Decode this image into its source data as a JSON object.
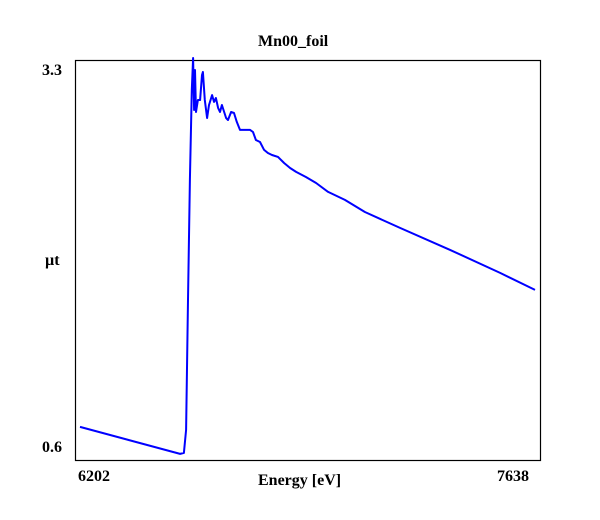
{
  "chart_data": {
    "type": "line",
    "title": "Mn00_foil",
    "xlabel": "Energy [eV]",
    "ylabel": "µt",
    "xlim": [
      6202,
      7638
    ],
    "ylim": [
      0.6,
      3.3
    ],
    "x_tick_labels": [
      "6202",
      "7638"
    ],
    "y_tick_labels": [
      "3.3",
      "0.6"
    ],
    "grid": false,
    "series": [
      {
        "name": "Mn00_foil",
        "color": "#0000ff",
        "x": [
          6202,
          6518,
          6530,
          6537,
          6543,
          6549,
          6555,
          6559,
          6562,
          6565,
          6568,
          6574,
          6581,
          6587,
          6590,
          6596,
          6603,
          6609,
          6619,
          6625,
          6631,
          6638,
          6644,
          6650,
          6663,
          6669,
          6679,
          6688,
          6697,
          6707,
          6739,
          6748,
          6757,
          6770,
          6783,
          6795,
          6808,
          6827,
          6846,
          6865,
          6884,
          6915,
          6947,
          6985,
          7038,
          7101,
          7212,
          7370,
          7528,
          7638
        ],
        "y": [
          0.751,
          0.558,
          0.565,
          0.73,
          1.658,
          2.515,
          3.157,
          3.386,
          3.014,
          3.3,
          3.0,
          3.086,
          3.086,
          3.264,
          3.286,
          3.086,
          2.957,
          3.05,
          3.121,
          3.072,
          3.1,
          3.029,
          3.0,
          3.05,
          2.957,
          2.943,
          3.0,
          2.993,
          2.929,
          2.872,
          2.872,
          2.857,
          2.8,
          2.786,
          2.729,
          2.707,
          2.693,
          2.679,
          2.636,
          2.6,
          2.572,
          2.536,
          2.493,
          2.429,
          2.372,
          2.286,
          2.172,
          2.015,
          1.851,
          1.729
        ]
      }
    ]
  }
}
